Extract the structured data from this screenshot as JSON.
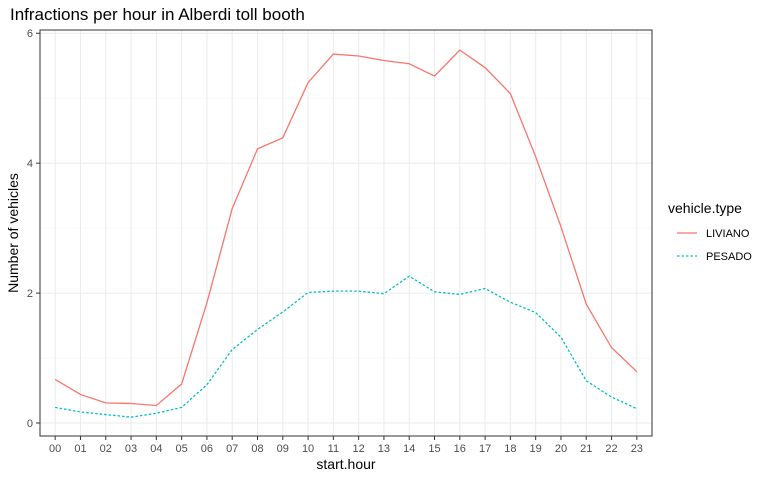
{
  "chart_data": {
    "type": "line",
    "title": "Infractions per hour in Alberdi toll booth",
    "xlabel": "start.hour",
    "ylabel": "Number of vehicles",
    "categories": [
      "00",
      "01",
      "02",
      "03",
      "04",
      "05",
      "06",
      "07",
      "08",
      "09",
      "10",
      "11",
      "12",
      "13",
      "14",
      "15",
      "16",
      "17",
      "18",
      "19",
      "20",
      "21",
      "22",
      "23"
    ],
    "y_ticks": [
      0,
      2,
      4,
      6
    ],
    "ylim": [
      -0.2,
      6.05
    ],
    "grid": true,
    "legend": {
      "title": "vehicle.type",
      "placement": "right"
    },
    "series": [
      {
        "name": "LIVIANO",
        "color": "#F8766D",
        "dash": "solid",
        "values": [
          0.67,
          0.44,
          0.31,
          0.3,
          0.27,
          0.6,
          1.85,
          3.3,
          4.22,
          4.39,
          5.24,
          5.68,
          5.65,
          5.58,
          5.53,
          5.34,
          5.74,
          5.47,
          5.07,
          4.1,
          3.02,
          1.83,
          1.16,
          0.79
        ]
      },
      {
        "name": "PESADO",
        "color": "#00BFC4",
        "dash": "dotted",
        "values": [
          0.24,
          0.17,
          0.13,
          0.09,
          0.15,
          0.24,
          0.59,
          1.13,
          1.44,
          1.71,
          2.01,
          2.03,
          2.03,
          1.99,
          2.26,
          2.02,
          1.98,
          2.07,
          1.86,
          1.7,
          1.32,
          0.65,
          0.4,
          0.22
        ]
      }
    ]
  }
}
